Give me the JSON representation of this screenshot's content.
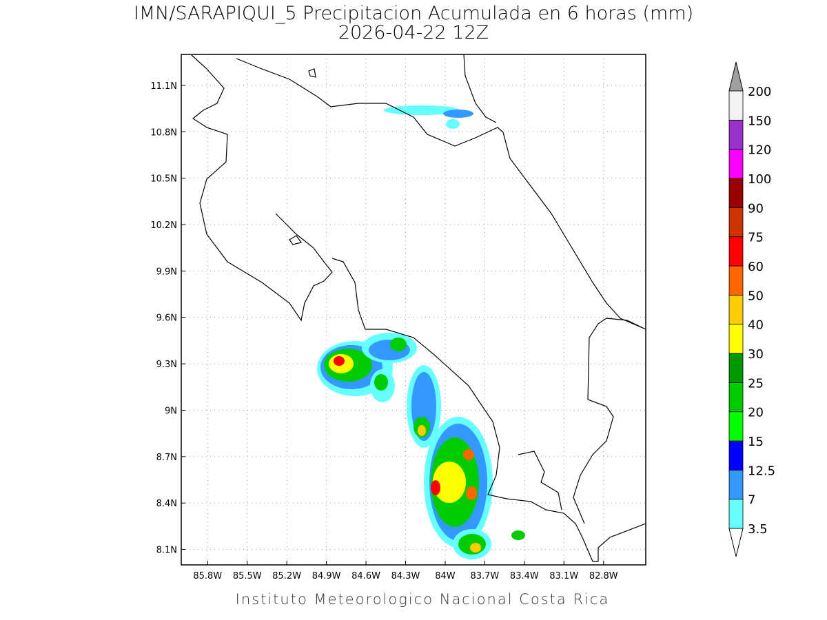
{
  "header": {
    "title": "IMN/SARAPIQUI_5 Precipitacion Acumulada en 6 horas (mm)",
    "subtitle": "2026-04-22 12Z"
  },
  "map": {
    "xlim": [
      -86.0,
      -82.48
    ],
    "ylim": [
      8.0,
      11.3
    ],
    "grid": true,
    "xticks": [
      {
        "value": -85.8,
        "label": "85.8W"
      },
      {
        "value": -85.5,
        "label": "85.5W"
      },
      {
        "value": -85.2,
        "label": "85.2W"
      },
      {
        "value": -84.9,
        "label": "84.9W"
      },
      {
        "value": -84.6,
        "label": "84.6W"
      },
      {
        "value": -84.3,
        "label": "84.3W"
      },
      {
        "value": -84.0,
        "label": "84W"
      },
      {
        "value": -83.7,
        "label": "83.7W"
      },
      {
        "value": -83.4,
        "label": "83.4W"
      },
      {
        "value": -83.1,
        "label": "83.1W"
      },
      {
        "value": -82.8,
        "label": "82.8W"
      }
    ],
    "yticks": [
      {
        "value": 8.1,
        "label": "8.1N"
      },
      {
        "value": 8.4,
        "label": "8.4N"
      },
      {
        "value": 8.7,
        "label": "8.7N"
      },
      {
        "value": 9.0,
        "label": "9N"
      },
      {
        "value": 9.3,
        "label": "9.3N"
      },
      {
        "value": 9.6,
        "label": "9.6N"
      },
      {
        "value": 9.9,
        "label": "9.9N"
      },
      {
        "value": 10.2,
        "label": "10.2N"
      },
      {
        "value": 10.5,
        "label": "10.5N"
      },
      {
        "value": 10.8,
        "label": "10.8N"
      },
      {
        "value": 11.1,
        "label": "11.1N"
      }
    ]
  },
  "colorbar": {
    "levels": [
      3.5,
      7,
      12.5,
      15,
      20,
      25,
      30,
      40,
      50,
      60,
      75,
      90,
      100,
      120,
      150,
      200
    ],
    "colors": [
      "#66ffff",
      "#3399ff",
      "#0000ff",
      "#00ff00",
      "#00cc00",
      "#009900",
      "#ffff00",
      "#ffcc00",
      "#ff6600",
      "#ff0000",
      "#cc3300",
      "#990000",
      "#ff00ff",
      "#9933cc",
      "#f2f2f2"
    ],
    "under_color": "#ffffff",
    "over_color": "#a0a0a0"
  },
  "footer": "Instituto Meteorologico Nacional Costa Rica"
}
